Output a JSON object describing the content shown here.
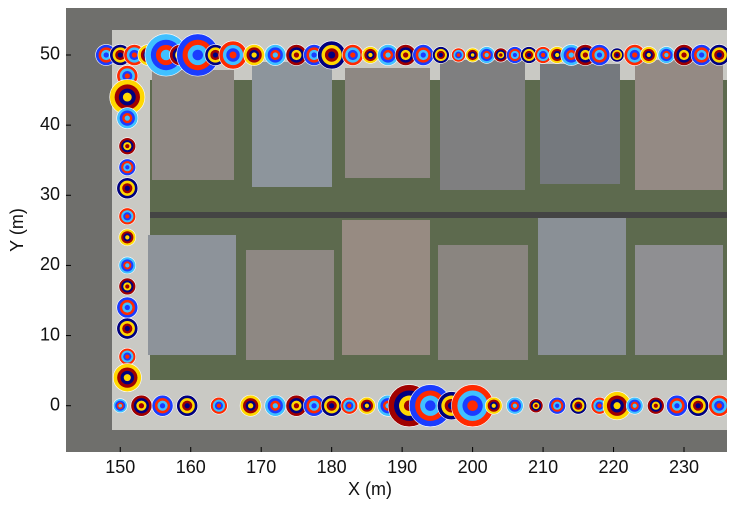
{
  "chart_data": {
    "type": "scatter",
    "xlabel": "X (m)",
    "ylabel": "Y (m)",
    "xlim": [
      142.3,
      236.1
    ],
    "ylim": [
      -6.6,
      56.7
    ],
    "xticks": [
      150,
      160,
      170,
      180,
      190,
      200,
      210,
      220,
      230
    ],
    "yticks": [
      0,
      10,
      20,
      30,
      40,
      50
    ],
    "ring_colors": [
      "#1a3cff",
      "#00007f",
      "#ff2a00",
      "#ffd700",
      "#40c0ff",
      "#a00000"
    ],
    "x": [
      148,
      150,
      152,
      154,
      156.5,
      158.5,
      161,
      163.5,
      166,
      169,
      172,
      175,
      177.5,
      180,
      183,
      185.5,
      188,
      190.5,
      193,
      195.5,
      198,
      200,
      202,
      204,
      206,
      208,
      210,
      212,
      214,
      216,
      218,
      220.5,
      223,
      225,
      227.5,
      230,
      232.5,
      235,
      151,
      151,
      151,
      151,
      151,
      151,
      151,
      151,
      151,
      151,
      151,
      151,
      151,
      151,
      150,
      153,
      156,
      159.5,
      164,
      168.5,
      172,
      175,
      177.5,
      180,
      182.5,
      185,
      188,
      191,
      194,
      197,
      200,
      203,
      206,
      209,
      212,
      215,
      218,
      220.5,
      223,
      226,
      229,
      232,
      235
    ],
    "y": [
      50,
      50,
      50,
      50,
      50,
      50,
      50,
      50,
      50,
      50,
      50,
      50,
      50,
      50,
      50,
      50,
      50,
      50,
      50,
      50,
      50,
      50,
      50,
      50,
      50,
      50,
      50,
      50,
      50,
      50,
      50,
      50,
      50,
      50,
      50,
      50,
      50,
      50,
      47,
      44,
      41,
      37,
      34,
      31,
      27,
      24,
      20,
      17,
      14,
      11,
      7,
      4,
      0,
      0,
      0,
      0,
      0,
      0,
      0,
      0,
      0,
      0,
      0,
      0,
      0,
      0,
      0,
      0,
      0,
      0,
      0,
      0,
      0,
      0,
      0,
      0,
      0,
      0,
      0,
      0,
      0
    ],
    "sizes": [
      1.5,
      1.5,
      1.5,
      1.5,
      3,
      1.5,
      3,
      1.5,
      2,
      1.5,
      1.5,
      1.5,
      1.5,
      2,
      1.5,
      1.2,
      1.5,
      1.5,
      1.5,
      1.2,
      1,
      1,
      1.2,
      1,
      1.2,
      1.2,
      1.2,
      1.2,
      1.5,
      1.5,
      1.5,
      1,
      1.5,
      1.2,
      1.2,
      1.5,
      1.5,
      1.5,
      1.5,
      2.5,
      1.5,
      1.2,
      1.2,
      1.5,
      1.2,
      1.2,
      1.2,
      1.2,
      1.5,
      1.5,
      1.2,
      2,
      1,
      1.5,
      1.5,
      1.5,
      1.2,
      1.5,
      1.5,
      1.5,
      1.5,
      1.5,
      1.2,
      1.2,
      1.5,
      3,
      3,
      2,
      3,
      1.2,
      1.2,
      1,
      1.2,
      1.2,
      1.2,
      2,
      1.2,
      1.2,
      1.5,
      1.5,
      1.5
    ]
  }
}
